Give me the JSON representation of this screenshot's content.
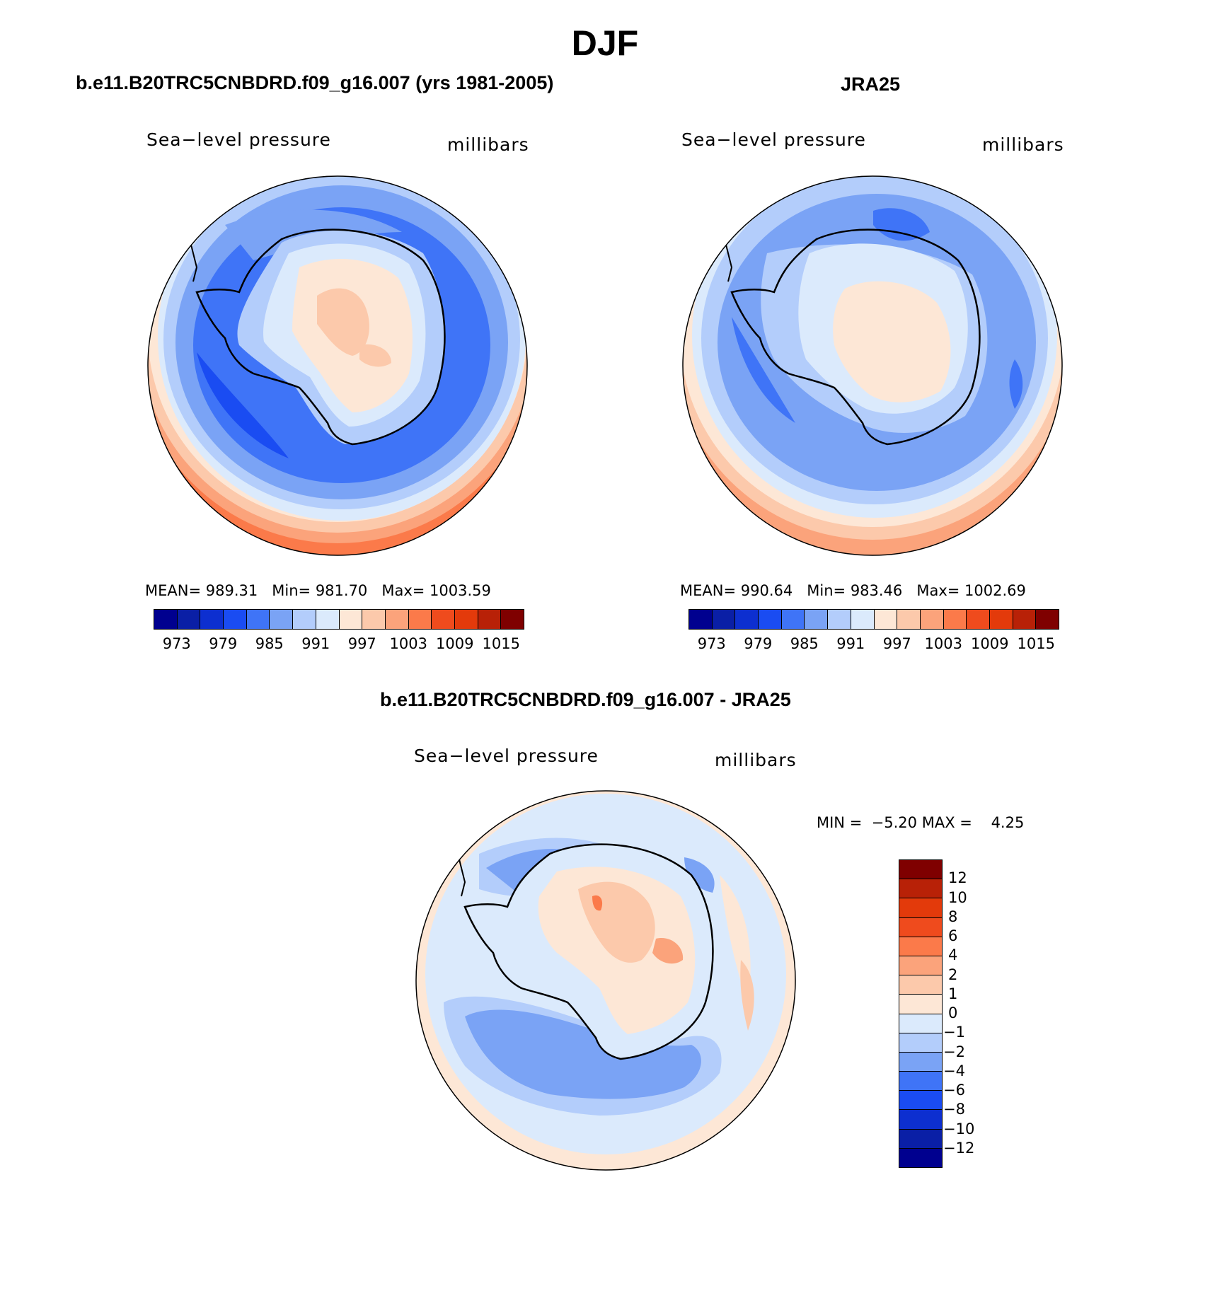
{
  "figure": {
    "title": "DJF"
  },
  "panels": [
    {
      "id": "model",
      "title": "b.e11.B20TRC5CNBDRD.f09_g16.007 (yrs 1981-2005)",
      "variable": "Sea−level pressure",
      "units": "millibars",
      "stats": {
        "mean_label": "MEAN=",
        "mean": "989.31",
        "min_label": "Min=",
        "min": "981.70",
        "max_label": "Max=",
        "max": "1003.59"
      }
    },
    {
      "id": "obs",
      "title": "JRA25",
      "variable": "Sea−level pressure",
      "units": "millibars",
      "stats": {
        "mean_label": "MEAN=",
        "mean": "990.64",
        "min_label": "Min=",
        "min": "983.46",
        "max_label": "Max=",
        "max": "1002.69"
      }
    },
    {
      "id": "diff",
      "title": "b.e11.B20TRC5CNBDRD.f09_g16.007 - JRA25",
      "variable": "Sea−level pressure",
      "units": "millibars",
      "stats": {
        "min_label": "MIN =",
        "min": "−5.20",
        "max_label": "MAX =",
        "max": "4.25"
      }
    }
  ],
  "colorbars": {
    "absolute": {
      "colors": [
        "#00008f",
        "#0a1fa6",
        "#0d2fd0",
        "#1a4cf2",
        "#3f74f7",
        "#7aa3f5",
        "#b3cdfb",
        "#dbeafc",
        "#fde7d6",
        "#fcc9ab",
        "#fba37b",
        "#fb7a4a",
        "#ef4b1d",
        "#e33a0b",
        "#b82107",
        "#7f0000"
      ],
      "tick_labels": [
        "973",
        "979",
        "985",
        "991",
        "997",
        "1003",
        "1009",
        "1015"
      ]
    },
    "difference": {
      "colors": [
        "#00008f",
        "#0a1fa6",
        "#0d2fd0",
        "#1a4cf2",
        "#3f74f7",
        "#7aa3f5",
        "#b3cdfb",
        "#dbeafc",
        "#fde7d6",
        "#fcc9ab",
        "#fba37b",
        "#fb7a4a",
        "#ef4b1d",
        "#e33a0b",
        "#b82107",
        "#7f0000"
      ],
      "tick_labels": [
        "−12",
        "−10",
        "−8",
        "−6",
        "−4",
        "−2",
        "−1",
        "0",
        "1",
        "2",
        "4",
        "6",
        "8",
        "10",
        "12"
      ]
    }
  },
  "map_fill_colors": {
    "deep": "#3f74f7",
    "mid": "#7aa3f5",
    "light": "#b3cdfb",
    "pale": "#dbeafc",
    "warm": "#fde7d6",
    "warm2": "#fcc9ab",
    "warm3": "#fba37b",
    "deepest": "#1a4cf2"
  }
}
